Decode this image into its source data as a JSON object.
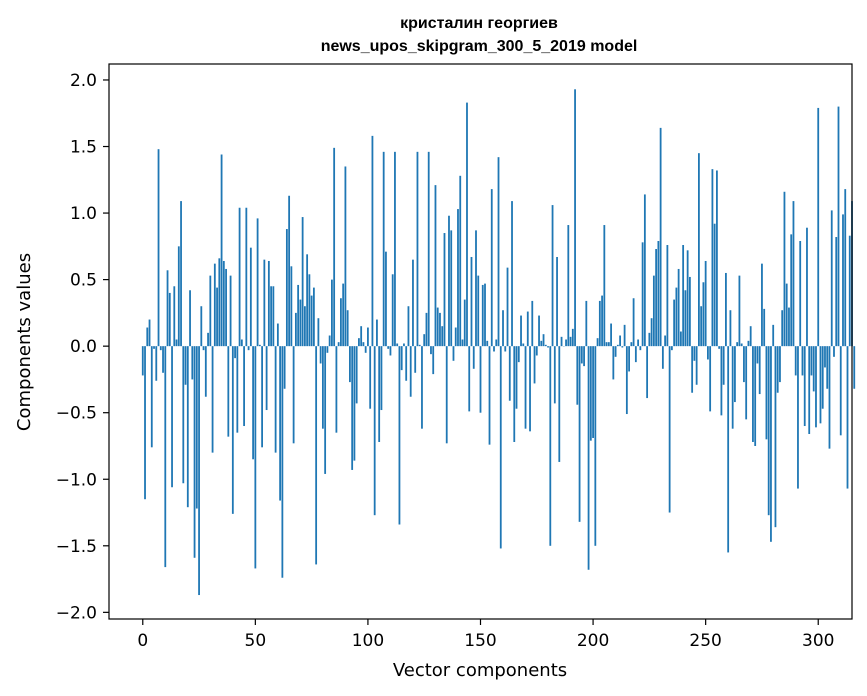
{
  "chart_data": {
    "type": "bar",
    "title": "кристалин георгиев",
    "subtitle": "news_upos_skipgram_300_5_2019 model",
    "xlabel": "Vector components",
    "ylabel": "Components values",
    "xlim": [
      -15,
      315
    ],
    "ylim": [
      -2.05,
      2.12
    ],
    "xticks": [
      0,
      50,
      100,
      150,
      200,
      250,
      300
    ],
    "yticks": [
      -2.0,
      -1.5,
      -1.0,
      -0.5,
      0.0,
      0.5,
      1.0,
      1.5,
      2.0
    ],
    "ytick_labels": [
      "−2.0",
      "−1.5",
      "−1.0",
      "−0.5",
      "0.0",
      "0.5",
      "1.0",
      "1.5",
      "2.0"
    ],
    "bar_color": "#1f77b4",
    "values": [
      -0.22,
      -1.15,
      0.14,
      0.2,
      -0.76,
      -0.02,
      -0.26,
      1.48,
      -0.03,
      -0.2,
      -1.66,
      0.57,
      0.4,
      -1.06,
      0.45,
      0.05,
      0.75,
      1.09,
      -1.03,
      -0.29,
      -1.21,
      0.42,
      -0.25,
      -1.59,
      -1.22,
      -1.87,
      0.3,
      -0.03,
      -0.38,
      0.1,
      0.53,
      -0.8,
      0.62,
      0.44,
      0.66,
      1.44,
      0.64,
      0.58,
      -0.68,
      0.53,
      -1.26,
      -0.09,
      -0.65,
      1.04,
      0.05,
      -0.6,
      1.04,
      -0.03,
      0.74,
      -0.85,
      -1.67,
      0.96,
      0.01,
      -0.76,
      0.65,
      -0.48,
      0.64,
      0.45,
      0.45,
      -0.8,
      0.17,
      -1.16,
      -1.74,
      -0.32,
      0.88,
      1.13,
      0.6,
      -0.73,
      0.25,
      0.46,
      0.35,
      0.97,
      0.3,
      0.69,
      0.54,
      0.38,
      0.44,
      -1.64,
      0.21,
      -0.13,
      -0.62,
      -0.96,
      -0.05,
      0.08,
      0.5,
      1.49,
      -0.65,
      0.03,
      0.36,
      0.47,
      1.35,
      0.27,
      -0.27,
      -0.93,
      -0.86,
      -0.43,
      0.06,
      0.15,
      0.03,
      -0.05,
      0.14,
      -0.47,
      1.58,
      -1.27,
      0.2,
      -0.72,
      -0.48,
      1.46,
      0.71,
      -0.02,
      -0.07,
      0.54,
      1.46,
      0.02,
      -1.34,
      -0.18,
      0.02,
      -0.26,
      0.3,
      -0.38,
      0.65,
      -0.2,
      1.46,
      0.01,
      -0.62,
      0.09,
      0.25,
      1.46,
      -0.06,
      -0.21,
      1.21,
      0.29,
      0.25,
      0.15,
      0.85,
      -0.73,
      0.98,
      0.87,
      -0.11,
      0.14,
      1.03,
      1.28,
      0.05,
      0.35,
      1.83,
      -0.49,
      0.67,
      -0.17,
      0.87,
      0.53,
      -0.5,
      0.46,
      0.47,
      0.04,
      -0.74,
      1.18,
      -0.04,
      0.05,
      1.42,
      -1.52,
      0.27,
      -0.04,
      0.59,
      -0.41,
      1.09,
      -0.72,
      -0.47,
      -0.12,
      0.23,
      0.02,
      -0.62,
      0.26,
      -0.64,
      0.34,
      -0.28,
      -0.07,
      0.23,
      0.04,
      0.09,
      0.01,
      -0.01,
      -1.5,
      1.06,
      -0.43,
      0.67,
      -0.87,
      0.07,
      0.0,
      0.05,
      0.91,
      0.07,
      0.13,
      1.93,
      -0.44,
      -1.32,
      -0.13,
      -0.15,
      0.34,
      -1.68,
      -0.71,
      -0.69,
      -1.5,
      0.06,
      0.34,
      0.38,
      0.91,
      0.03,
      0.03,
      0.17,
      -0.25,
      -0.08,
      0.01,
      0.08,
      -0.01,
      0.16,
      -0.51,
      -0.19,
      0.03,
      0.36,
      -0.12,
      0.05,
      -0.03,
      0.78,
      1.14,
      -0.39,
      0.1,
      0.21,
      0.53,
      0.73,
      0.79,
      1.64,
      -0.17,
      0.08,
      0.76,
      -1.25,
      -0.03,
      0.35,
      0.44,
      0.58,
      0.11,
      0.76,
      0.42,
      0.72,
      0.52,
      -0.35,
      -0.11,
      -0.29,
      1.45,
      0.3,
      0.48,
      0.64,
      -0.1,
      -0.49,
      1.33,
      0.92,
      1.32,
      -0.02,
      -0.52,
      -0.29,
      0.55,
      -1.55,
      0.27,
      -0.62,
      -0.42,
      0.03,
      0.53,
      0.02,
      -0.27,
      -0.55,
      0.04,
      0.15,
      -0.72,
      -0.75,
      -0.13,
      -0.36,
      0.62,
      0.28,
      -0.7,
      -1.27,
      -1.47,
      0.16,
      -1.36,
      -0.35,
      -0.27,
      0.27,
      1.16,
      0.47,
      0.29,
      0.84,
      1.09,
      -0.22,
      -1.07,
      0.79,
      -0.22,
      -0.6,
      0.89,
      -0.66,
      -0.22,
      -0.34,
      -0.61,
      1.79,
      -0.58,
      -0.47,
      -0.16,
      -0.32,
      -0.77,
      1.02,
      -0.08,
      0.82,
      1.8,
      -0.67,
      0.99,
      1.18,
      -1.07,
      0.83,
      1.09,
      -0.32
    ]
  }
}
